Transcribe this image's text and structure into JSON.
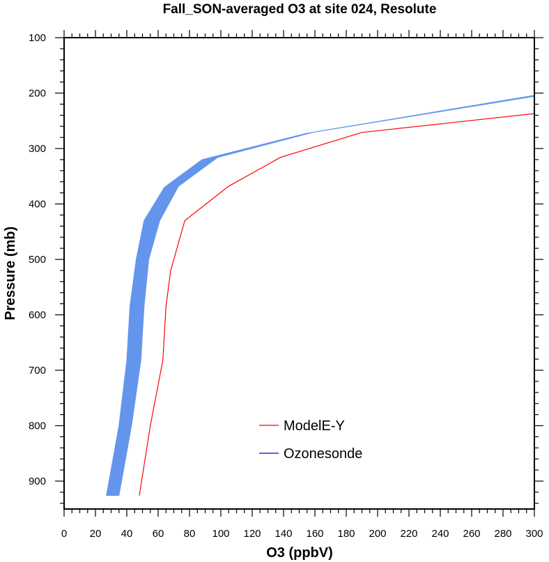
{
  "chart_data": {
    "type": "line",
    "title": "Fall_SON-averaged O3 at site 024, Resolute",
    "xlabel": "O3 (ppbV)",
    "ylabel": "Pressure (mb)",
    "xlim": [
      0,
      300
    ],
    "ylim": [
      100,
      950
    ],
    "y_reversed": true,
    "grid": false,
    "legend_placement": "bottom-right",
    "x_ticks": [
      0,
      20,
      40,
      60,
      80,
      100,
      120,
      140,
      160,
      180,
      200,
      220,
      240,
      260,
      280,
      300
    ],
    "y_ticks": [
      100,
      200,
      300,
      400,
      500,
      600,
      700,
      800,
      900
    ],
    "series": [
      {
        "name": "ModelE-Y",
        "kind": "line",
        "color": "#ff0000",
        "points": [
          [
            48,
            926
          ],
          [
            55,
            800
          ],
          [
            63,
            682
          ],
          [
            65,
            585
          ],
          [
            68,
            520
          ],
          [
            77,
            430
          ],
          [
            105,
            368
          ],
          [
            138,
            316
          ],
          [
            190,
            271
          ],
          [
            300,
            237
          ]
        ]
      },
      {
        "name": "Ozonesonde",
        "kind": "band",
        "color": "#6495ed",
        "legend_color": "#0000cd",
        "upper": [
          [
            35,
            926
          ],
          [
            43,
            800
          ],
          [
            49,
            682
          ],
          [
            51,
            585
          ],
          [
            54,
            500
          ],
          [
            61,
            430
          ],
          [
            73,
            368
          ],
          [
            98,
            316
          ],
          [
            160,
            270
          ],
          [
            300,
            204
          ]
        ],
        "lower": [
          [
            27,
            926
          ],
          [
            35,
            800
          ],
          [
            40,
            682
          ],
          [
            42,
            585
          ],
          [
            46,
            500
          ],
          [
            51,
            430
          ],
          [
            64,
            370
          ],
          [
            88,
            320
          ],
          [
            154,
            273
          ],
          [
            300,
            206
          ]
        ]
      }
    ]
  }
}
